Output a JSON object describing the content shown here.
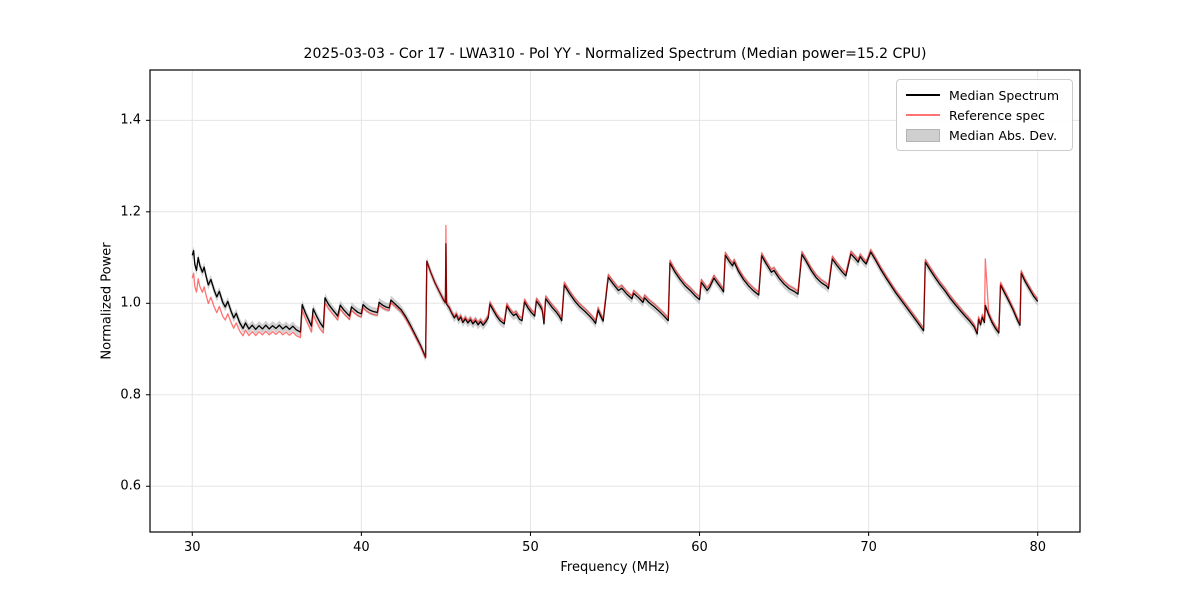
{
  "chart_data": {
    "type": "line",
    "title": "2025-03-03 - Cor 17 - LWA310 - Pol YY - Normalized Spectrum (Median power=15.2 CPU)",
    "xlabel": "Frequency (MHz)",
    "ylabel": "Normalized Power",
    "xlim": [
      27.5,
      82.5
    ],
    "ylim": [
      0.5,
      1.51
    ],
    "xticks": [
      30,
      40,
      50,
      60,
      70,
      80
    ],
    "xticklabels": [
      "30",
      "40",
      "50",
      "60",
      "70",
      "80"
    ],
    "yticks": [
      0.6,
      0.8,
      1.0,
      1.2,
      1.4
    ],
    "yticklabels": [
      "0.6",
      "0.8",
      "1.0",
      "1.2",
      "1.4"
    ],
    "grid": true,
    "grid_color": "#e5e5e5",
    "spine_color": "#000000",
    "legend_position": "upper right",
    "series": [
      {
        "name": "Median Spectrum",
        "color": "#000000",
        "alpha": 1.0,
        "linewidth": 1.3,
        "points": [
          [
            30.0,
            1.105
          ],
          [
            30.08,
            1.115
          ],
          [
            30.15,
            1.085
          ],
          [
            30.25,
            1.072
          ],
          [
            30.35,
            1.1
          ],
          [
            30.45,
            1.082
          ],
          [
            30.6,
            1.068
          ],
          [
            30.7,
            1.079
          ],
          [
            30.8,
            1.062
          ],
          [
            30.95,
            1.04
          ],
          [
            31.1,
            1.052
          ],
          [
            31.3,
            1.028
          ],
          [
            31.45,
            1.014
          ],
          [
            31.6,
            1.026
          ],
          [
            31.8,
            1.002
          ],
          [
            31.95,
            0.992
          ],
          [
            32.1,
            1.004
          ],
          [
            32.3,
            0.982
          ],
          [
            32.45,
            0.968
          ],
          [
            32.6,
            0.978
          ],
          [
            32.8,
            0.958
          ],
          [
            33.0,
            0.945
          ],
          [
            33.15,
            0.957
          ],
          [
            33.35,
            0.944
          ],
          [
            33.55,
            0.952
          ],
          [
            33.75,
            0.943
          ],
          [
            33.95,
            0.951
          ],
          [
            34.15,
            0.944
          ],
          [
            34.35,
            0.952
          ],
          [
            34.55,
            0.944
          ],
          [
            34.75,
            0.951
          ],
          [
            34.95,
            0.945
          ],
          [
            35.15,
            0.952
          ],
          [
            35.35,
            0.944
          ],
          [
            35.55,
            0.95
          ],
          [
            35.75,
            0.943
          ],
          [
            35.95,
            0.95
          ],
          [
            36.15,
            0.942
          ],
          [
            36.4,
            0.937
          ],
          [
            36.5,
            0.997
          ],
          [
            36.7,
            0.978
          ],
          [
            36.9,
            0.962
          ],
          [
            37.05,
            0.95
          ],
          [
            37.15,
            0.988
          ],
          [
            37.35,
            0.972
          ],
          [
            37.55,
            0.958
          ],
          [
            37.75,
            0.947
          ],
          [
            37.85,
            1.012
          ],
          [
            38.05,
            0.998
          ],
          [
            38.3,
            0.986
          ],
          [
            38.5,
            0.977
          ],
          [
            38.6,
            0.972
          ],
          [
            38.75,
            0.996
          ],
          [
            38.95,
            0.986
          ],
          [
            39.15,
            0.978
          ],
          [
            39.3,
            0.972
          ],
          [
            39.42,
            0.992
          ],
          [
            39.6,
            0.986
          ],
          [
            39.8,
            0.98
          ],
          [
            40.0,
            0.977
          ],
          [
            40.1,
            0.997
          ],
          [
            40.3,
            0.99
          ],
          [
            40.5,
            0.985
          ],
          [
            40.7,
            0.982
          ],
          [
            40.95,
            0.98
          ],
          [
            41.05,
            1.002
          ],
          [
            41.25,
            0.996
          ],
          [
            41.45,
            0.992
          ],
          [
            41.65,
            0.99
          ],
          [
            41.75,
            1.007
          ],
          [
            41.95,
            1.0
          ],
          [
            42.15,
            0.993
          ],
          [
            42.35,
            0.986
          ],
          [
            42.6,
            0.972
          ],
          [
            42.9,
            0.952
          ],
          [
            43.2,
            0.93
          ],
          [
            43.5,
            0.908
          ],
          [
            43.8,
            0.882
          ],
          [
            43.87,
            1.092
          ],
          [
            44.1,
            1.068
          ],
          [
            44.35,
            1.045
          ],
          [
            44.6,
            1.026
          ],
          [
            44.85,
            1.008
          ],
          [
            44.97,
            1.001
          ],
          [
            45.0,
            1.13
          ],
          [
            45.04,
            0.998
          ],
          [
            45.2,
            0.99
          ],
          [
            45.35,
            0.978
          ],
          [
            45.5,
            0.968
          ],
          [
            45.62,
            0.975
          ],
          [
            45.75,
            0.963
          ],
          [
            45.88,
            0.97
          ],
          [
            46.0,
            0.958
          ],
          [
            46.15,
            0.966
          ],
          [
            46.3,
            0.957
          ],
          [
            46.45,
            0.964
          ],
          [
            46.6,
            0.955
          ],
          [
            46.75,
            0.962
          ],
          [
            46.9,
            0.953
          ],
          [
            47.05,
            0.96
          ],
          [
            47.2,
            0.952
          ],
          [
            47.35,
            0.959
          ],
          [
            47.5,
            0.968
          ],
          [
            47.6,
            0.998
          ],
          [
            47.8,
            0.985
          ],
          [
            48.0,
            0.972
          ],
          [
            48.2,
            0.962
          ],
          [
            48.45,
            0.955
          ],
          [
            48.6,
            0.994
          ],
          [
            48.8,
            0.982
          ],
          [
            49.0,
            0.973
          ],
          [
            49.15,
            0.977
          ],
          [
            49.35,
            0.965
          ],
          [
            49.5,
            0.962
          ],
          [
            49.65,
            1.003
          ],
          [
            49.85,
            0.99
          ],
          [
            50.05,
            0.98
          ],
          [
            50.25,
            0.972
          ],
          [
            50.35,
            1.005
          ],
          [
            50.55,
            0.995
          ],
          [
            50.7,
            0.985
          ],
          [
            50.8,
            0.955
          ],
          [
            50.9,
            1.01
          ],
          [
            51.1,
            1.0
          ],
          [
            51.3,
            0.99
          ],
          [
            51.5,
            0.982
          ],
          [
            51.7,
            0.972
          ],
          [
            51.85,
            0.962
          ],
          [
            52.0,
            1.04
          ],
          [
            52.3,
            1.022
          ],
          [
            52.6,
            1.006
          ],
          [
            52.9,
            0.993
          ],
          [
            53.2,
            0.983
          ],
          [
            53.5,
            0.972
          ],
          [
            53.72,
            0.963
          ],
          [
            53.85,
            0.956
          ],
          [
            54.0,
            0.985
          ],
          [
            54.15,
            0.972
          ],
          [
            54.3,
            0.961
          ],
          [
            54.6,
            1.057
          ],
          [
            54.9,
            1.042
          ],
          [
            55.2,
            1.028
          ],
          [
            55.4,
            1.033
          ],
          [
            55.7,
            1.02
          ],
          [
            56.0,
            1.01
          ],
          [
            56.1,
            1.022
          ],
          [
            56.4,
            1.012
          ],
          [
            56.65,
            1.002
          ],
          [
            56.75,
            1.012
          ],
          [
            57.0,
            1.002
          ],
          [
            57.3,
            0.993
          ],
          [
            57.6,
            0.983
          ],
          [
            57.9,
            0.972
          ],
          [
            58.15,
            0.962
          ],
          [
            58.25,
            1.088
          ],
          [
            58.55,
            1.068
          ],
          [
            58.85,
            1.052
          ],
          [
            59.15,
            1.038
          ],
          [
            59.45,
            1.028
          ],
          [
            59.75,
            1.016
          ],
          [
            60.0,
            1.008
          ],
          [
            60.1,
            1.046
          ],
          [
            60.3,
            1.036
          ],
          [
            60.45,
            1.028
          ],
          [
            60.6,
            1.035
          ],
          [
            60.85,
            1.055
          ],
          [
            61.1,
            1.042
          ],
          [
            61.3,
            1.032
          ],
          [
            61.42,
            1.025
          ],
          [
            61.52,
            1.105
          ],
          [
            61.75,
            1.092
          ],
          [
            61.95,
            1.082
          ],
          [
            62.05,
            1.09
          ],
          [
            62.3,
            1.07
          ],
          [
            62.6,
            1.052
          ],
          [
            62.9,
            1.038
          ],
          [
            63.2,
            1.027
          ],
          [
            63.5,
            1.018
          ],
          [
            63.67,
            1.104
          ],
          [
            63.95,
            1.086
          ],
          [
            64.25,
            1.068
          ],
          [
            64.4,
            1.072
          ],
          [
            64.7,
            1.055
          ],
          [
            65.0,
            1.042
          ],
          [
            65.3,
            1.032
          ],
          [
            65.6,
            1.026
          ],
          [
            65.82,
            1.02
          ],
          [
            66.05,
            1.107
          ],
          [
            66.3,
            1.092
          ],
          [
            66.6,
            1.072
          ],
          [
            66.9,
            1.056
          ],
          [
            67.2,
            1.045
          ],
          [
            67.5,
            1.038
          ],
          [
            67.62,
            1.032
          ],
          [
            67.85,
            1.097
          ],
          [
            68.1,
            1.084
          ],
          [
            68.4,
            1.07
          ],
          [
            68.65,
            1.06
          ],
          [
            68.95,
            1.108
          ],
          [
            69.2,
            1.098
          ],
          [
            69.38,
            1.09
          ],
          [
            69.5,
            1.102
          ],
          [
            69.7,
            1.092
          ],
          [
            69.85,
            1.086
          ],
          [
            70.0,
            1.1
          ],
          [
            70.12,
            1.112
          ],
          [
            70.4,
            1.095
          ],
          [
            70.7,
            1.075
          ],
          [
            71.0,
            1.057
          ],
          [
            71.3,
            1.04
          ],
          [
            71.6,
            1.023
          ],
          [
            71.9,
            1.008
          ],
          [
            72.2,
            0.993
          ],
          [
            72.5,
            0.978
          ],
          [
            72.8,
            0.963
          ],
          [
            73.05,
            0.95
          ],
          [
            73.25,
            0.94
          ],
          [
            73.35,
            1.09
          ],
          [
            73.6,
            1.075
          ],
          [
            73.9,
            1.058
          ],
          [
            74.2,
            1.042
          ],
          [
            74.5,
            1.028
          ],
          [
            74.8,
            1.012
          ],
          [
            75.1,
            0.998
          ],
          [
            75.4,
            0.985
          ],
          [
            75.7,
            0.972
          ],
          [
            76.0,
            0.96
          ],
          [
            76.25,
            0.948
          ],
          [
            76.42,
            0.933
          ],
          [
            76.5,
            0.965
          ],
          [
            76.62,
            0.953
          ],
          [
            76.72,
            0.97
          ],
          [
            76.85,
            0.958
          ],
          [
            76.9,
            0.995
          ],
          [
            77.1,
            0.975
          ],
          [
            77.3,
            0.958
          ],
          [
            77.5,
            0.945
          ],
          [
            77.7,
            0.935
          ],
          [
            77.8,
            1.04
          ],
          [
            78.05,
            1.022
          ],
          [
            78.3,
            1.004
          ],
          [
            78.55,
            0.985
          ],
          [
            78.8,
            0.963
          ],
          [
            78.95,
            0.952
          ],
          [
            79.02,
            1.066
          ],
          [
            79.25,
            1.048
          ],
          [
            79.5,
            1.032
          ],
          [
            79.75,
            1.016
          ],
          [
            80.0,
            1.004
          ]
        ]
      },
      {
        "name": "Reference spec",
        "color": "#ff0000",
        "alpha": 0.55,
        "linewidth": 1.3,
        "derived_from": "Median Spectrum",
        "offsets_from_median": [
          [
            30.0,
            -0.05
          ],
          [
            30.5,
            -0.045
          ],
          [
            31.0,
            -0.04
          ],
          [
            31.5,
            -0.034
          ],
          [
            32.0,
            -0.028
          ],
          [
            32.5,
            -0.022
          ],
          [
            33.0,
            -0.016
          ],
          [
            33.5,
            -0.014
          ],
          [
            34.0,
            -0.013
          ],
          [
            35.0,
            -0.013
          ],
          [
            36.0,
            -0.013
          ],
          [
            36.5,
            -0.012
          ],
          [
            37.0,
            -0.013
          ],
          [
            37.5,
            -0.014
          ],
          [
            38.0,
            -0.01
          ],
          [
            39.0,
            -0.008
          ],
          [
            40.0,
            -0.007
          ],
          [
            41.0,
            -0.006
          ],
          [
            42.0,
            -0.005
          ],
          [
            43.0,
            -0.004
          ],
          [
            43.8,
            -0.002
          ],
          [
            44.2,
            0.0
          ],
          [
            45.0,
            0.002
          ],
          [
            46.0,
            0.004
          ],
          [
            47.0,
            0.005
          ],
          [
            48.0,
            0.005
          ],
          [
            50.0,
            0.006
          ],
          [
            52.0,
            0.006
          ],
          [
            54.0,
            0.006
          ],
          [
            56.0,
            0.006
          ],
          [
            58.0,
            0.006
          ],
          [
            60.0,
            0.006
          ],
          [
            62.0,
            0.006
          ],
          [
            64.0,
            0.006
          ],
          [
            66.0,
            0.006
          ],
          [
            68.0,
            0.006
          ],
          [
            70.0,
            0.005
          ],
          [
            72.0,
            0.005
          ],
          [
            74.0,
            0.006
          ],
          [
            76.0,
            0.005
          ],
          [
            77.0,
            0.005
          ],
          [
            78.0,
            0.005
          ],
          [
            80.0,
            0.005
          ]
        ],
        "spikes": [
          [
            45.0,
            1.17
          ],
          [
            76.9,
            1.097
          ]
        ]
      },
      {
        "name": "Median Abs. Dev.",
        "type": "band",
        "color": "#787878",
        "alpha": 0.35,
        "band_halfwidth": 0.01,
        "around": "Median Spectrum"
      }
    ]
  },
  "legend": {
    "items": [
      {
        "label": "Median Spectrum",
        "sample": "line",
        "color": "#000000"
      },
      {
        "label": "Reference spec",
        "sample": "line",
        "color": "#ff7373"
      },
      {
        "label": "Median Abs. Dev.",
        "sample": "patch",
        "color": "#cfcfcf"
      }
    ]
  }
}
